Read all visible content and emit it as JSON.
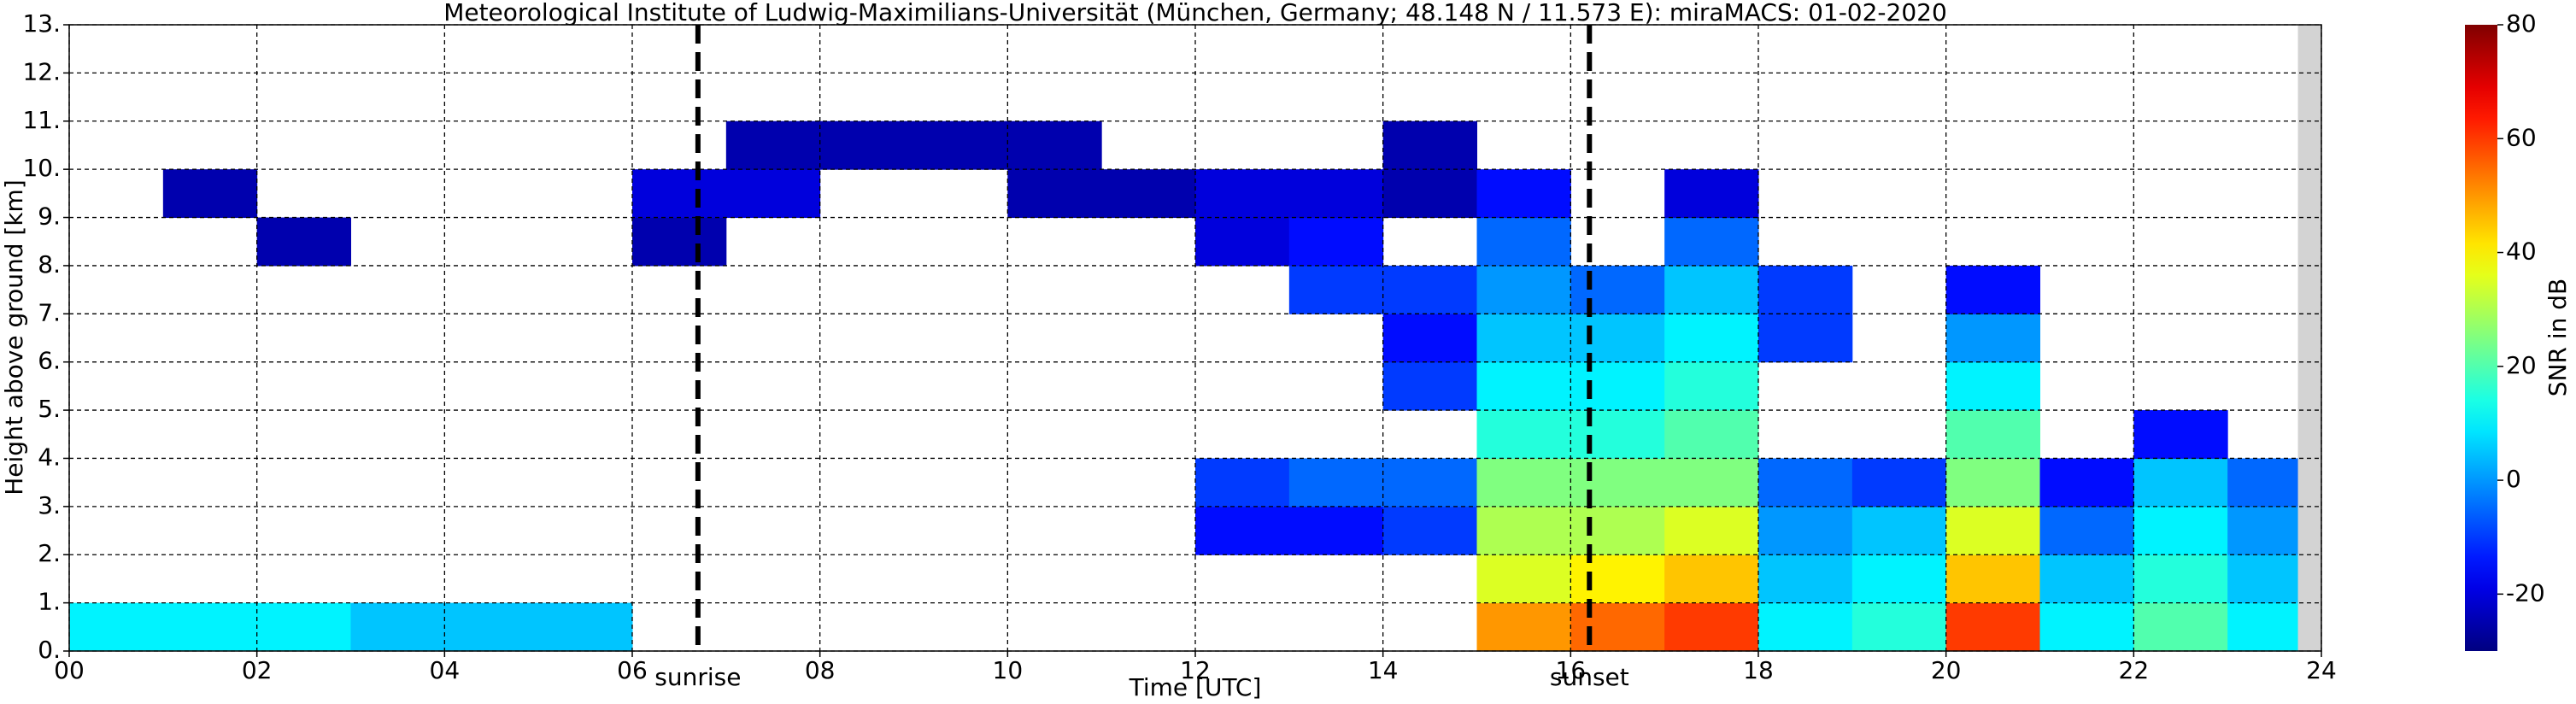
{
  "chart_data": {
    "type": "heatmap",
    "title": "Meteorological Institute of Ludwig-Maximilians-Universität (München, Germany; 48.148 N / 11.573 E):    miraMACS: 01-02-2020",
    "x_label": "Time [UTC]",
    "y_label": "Height above ground [km]",
    "colorbar_label": "SNR in dB",
    "colormap": "jet",
    "clim": [
      -30,
      80
    ],
    "cticks": [
      -20,
      0,
      20,
      40,
      60,
      80
    ],
    "xlim": [
      0,
      24
    ],
    "ylim": [
      0,
      13
    ],
    "xticks": [
      {
        "value": 0,
        "label": "00"
      },
      {
        "value": 2,
        "label": "02"
      },
      {
        "value": 4,
        "label": "04"
      },
      {
        "value": 6,
        "label": "06"
      },
      {
        "value": 8,
        "label": "08"
      },
      10,
      12,
      14,
      16,
      18,
      20,
      22,
      24
    ],
    "yticks": [
      {
        "value": 0,
        "label": "0."
      },
      {
        "value": 1,
        "label": "1."
      },
      {
        "value": 2,
        "label": "2."
      },
      {
        "value": 3,
        "label": "3."
      },
      {
        "value": 4,
        "label": "4."
      },
      {
        "value": 5,
        "label": "5."
      },
      {
        "value": 6,
        "label": "6."
      },
      {
        "value": 7,
        "label": "7."
      },
      {
        "value": 8,
        "label": "8."
      },
      {
        "value": 9,
        "label": "9."
      },
      {
        "value": 10,
        "label": "10."
      },
      {
        "value": 11,
        "label": "11."
      },
      {
        "value": 12,
        "label": "12."
      },
      {
        "value": 13,
        "label": "13."
      }
    ],
    "grid": true,
    "shaded_xrange": [
      23.75,
      24
    ],
    "annotations": [
      {
        "text": "sunrise",
        "x": 6.7
      },
      {
        "text": "sunset",
        "x": 16.2
      }
    ],
    "xbins": [
      0,
      1,
      2,
      3,
      4,
      5,
      6,
      7,
      8,
      9,
      10,
      11,
      12,
      13,
      14,
      15,
      16,
      17,
      18,
      19,
      20,
      21,
      22,
      23,
      24
    ],
    "ybins": [
      0,
      1,
      2,
      3,
      4,
      5,
      6,
      7,
      8,
      9,
      10,
      11,
      12,
      13
    ],
    "z": [
      [
        10,
        10,
        10,
        5,
        5,
        5,
        null,
        null,
        null,
        null,
        null,
        null,
        null,
        null,
        null,
        50,
        55,
        60,
        10,
        15,
        60,
        10,
        20,
        10
      ],
      [
        null,
        null,
        null,
        null,
        null,
        null,
        null,
        null,
        null,
        null,
        null,
        null,
        null,
        null,
        null,
        35,
        40,
        45,
        5,
        10,
        45,
        5,
        15,
        5
      ],
      [
        null,
        null,
        null,
        null,
        null,
        null,
        null,
        null,
        null,
        null,
        null,
        null,
        -15,
        -15,
        -10,
        30,
        30,
        35,
        0,
        5,
        35,
        -5,
        10,
        0
      ],
      [
        null,
        null,
        null,
        null,
        null,
        null,
        null,
        null,
        null,
        null,
        null,
        null,
        -10,
        -5,
        -5,
        25,
        25,
        25,
        -5,
        -10,
        25,
        -15,
        5,
        -5
      ],
      [
        null,
        null,
        null,
        null,
        null,
        null,
        null,
        null,
        null,
        null,
        null,
        null,
        null,
        null,
        null,
        15,
        15,
        20,
        null,
        null,
        20,
        null,
        -15,
        null
      ],
      [
        null,
        null,
        null,
        null,
        null,
        null,
        null,
        null,
        null,
        null,
        null,
        null,
        null,
        null,
        -10,
        10,
        10,
        15,
        null,
        null,
        10,
        null,
        null,
        null
      ],
      [
        null,
        null,
        null,
        null,
        null,
        null,
        null,
        null,
        null,
        null,
        null,
        null,
        null,
        null,
        -15,
        5,
        5,
        10,
        -10,
        null,
        0,
        null,
        null,
        null
      ],
      [
        null,
        null,
        null,
        null,
        null,
        null,
        null,
        null,
        null,
        null,
        null,
        null,
        null,
        -10,
        -10,
        0,
        -5,
        5,
        -10,
        null,
        -15,
        null,
        null,
        null
      ],
      [
        null,
        null,
        -25,
        null,
        null,
        null,
        -25,
        null,
        null,
        null,
        null,
        null,
        -20,
        -15,
        null,
        -5,
        null,
        -5,
        null,
        null,
        null,
        null,
        null,
        null
      ],
      [
        null,
        -25,
        null,
        null,
        null,
        null,
        -20,
        -20,
        null,
        null,
        -25,
        -25,
        -20,
        -20,
        -25,
        -15,
        null,
        -20,
        null,
        null,
        null,
        null,
        null,
        null
      ],
      [
        null,
        null,
        null,
        null,
        null,
        null,
        null,
        -25,
        -25,
        -25,
        -25,
        null,
        null,
        null,
        -25,
        null,
        null,
        null,
        null,
        null,
        null,
        null,
        null,
        null
      ],
      [
        null,
        null,
        null,
        null,
        null,
        null,
        null,
        null,
        null,
        null,
        null,
        null,
        null,
        null,
        null,
        null,
        null,
        null,
        null,
        null,
        null,
        null,
        null,
        null
      ],
      [
        null,
        null,
        null,
        null,
        null,
        null,
        null,
        null,
        null,
        null,
        null,
        null,
        null,
        null,
        null,
        null,
        null,
        null,
        null,
        null,
        null,
        null,
        null,
        null
      ]
    ]
  }
}
